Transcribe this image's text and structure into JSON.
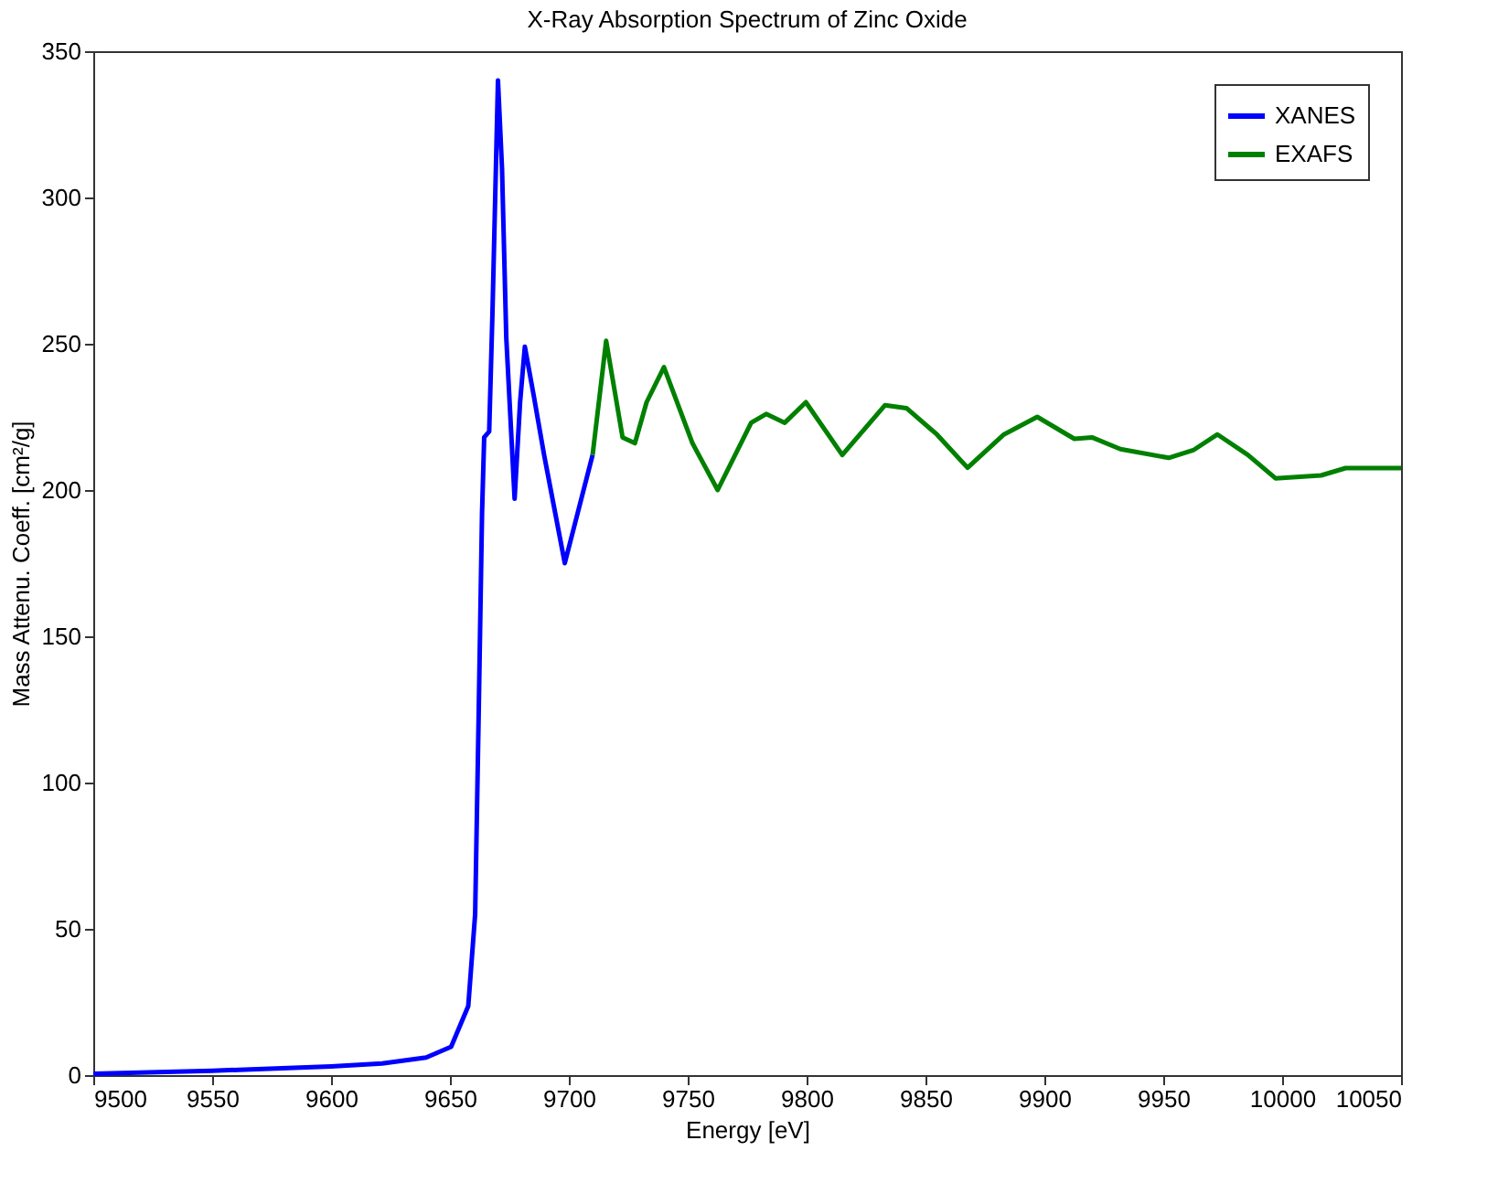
{
  "chart_data": {
    "type": "line",
    "title": "X-Ray Absorption Spectrum of Zinc Oxide",
    "xlabel": "Energy [eV]",
    "ylabel": "Mass Attenu. Coeff. [cm²/g]",
    "xlim": [
      9500,
      10050
    ],
    "xticks": [
      9500,
      9550,
      9600,
      9650,
      9700,
      9750,
      9800,
      9850,
      9900,
      9950,
      10000,
      10050
    ],
    "ylim": [
      0,
      350
    ],
    "yticks": [
      0,
      50,
      100,
      150,
      200,
      250,
      300,
      350
    ],
    "grid": false,
    "legend": "top right",
    "line_style": "solid",
    "marker": "none",
    "series": [
      {
        "name": "XANES",
        "color": "#0000ff",
        "x": [
          9500,
          9550,
          9600,
          9621.5,
          9640,
          9650.5,
          9657.7,
          9660.6,
          9662.1,
          9663.5,
          9664.4,
          9666.5,
          9667.9,
          9670.2,
          9671.9,
          9673.7,
          9677.2,
          9679.5,
          9681.5,
          9685.3,
          9689.6,
          9698.3,
          9710
        ],
        "values": [
          0.5,
          1.5,
          3,
          4,
          6,
          9.7,
          23.6,
          55,
          124,
          192,
          218,
          220,
          261,
          340,
          310,
          252,
          197,
          230,
          249,
          232,
          212,
          175,
          212
        ]
      },
      {
        "name": "EXAFS",
        "color": "#008000",
        "x": [
          9710,
          9715.7,
          9722.6,
          9727.8,
          9732.7,
          9740,
          9752,
          9762.6,
          9776.7,
          9783,
          9790.8,
          9799.7,
          9815,
          9833,
          9842,
          9854.8,
          9867.7,
          9883,
          9897,
          9912.6,
          9920,
          9932,
          9952.3,
          9962.6,
          9972.8,
          9985.6,
          9997.2,
          10016.4,
          10026.7,
          10050
        ],
        "values": [
          212,
          251,
          218,
          216,
          230,
          242,
          216,
          200,
          223,
          226,
          223,
          230,
          212,
          229,
          228,
          219,
          207.6,
          219,
          225,
          217.5,
          218,
          214,
          211,
          213.6,
          219,
          212,
          204,
          205,
          207.5,
          207.5
        ]
      }
    ]
  }
}
